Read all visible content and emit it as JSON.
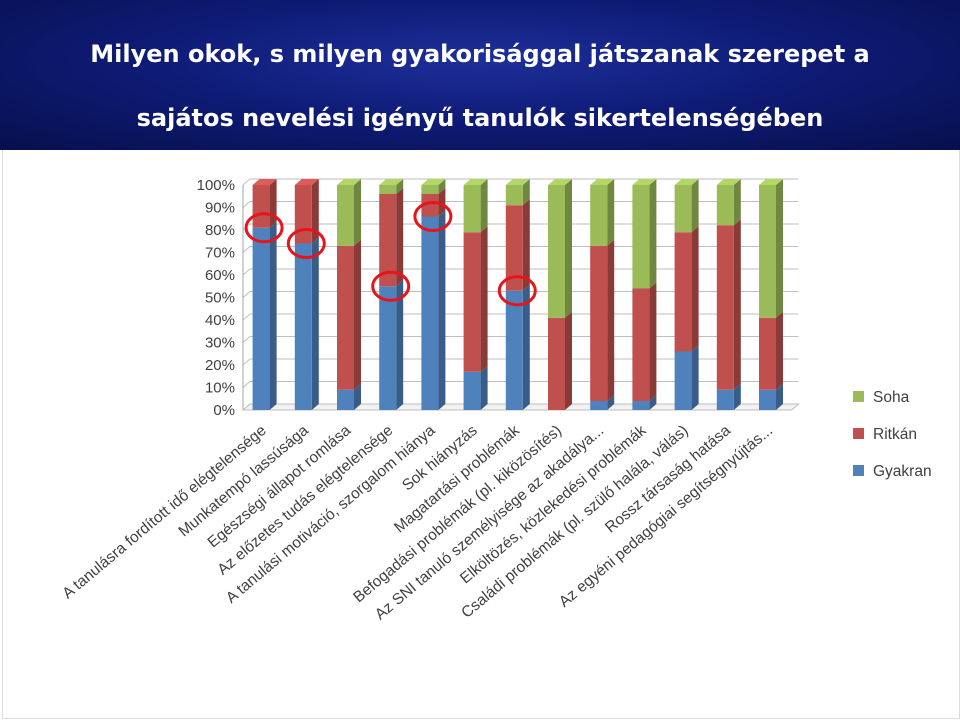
{
  "header": {
    "title_line1": "Milyen okok, s milyen gyakorisággal játszanak szerepet a",
    "title_line2": "sajátos nevelési igényű tanulók sikertelenségében"
  },
  "chart_data": {
    "type": "bar",
    "stacked": true,
    "percent": true,
    "categories": [
      "A tanulásra fordított idő elégtelensége",
      "Munkatempó lassúsága",
      "Egészségi állapot romlása",
      "Az előzetes tudás elégtelensége",
      "A tanulási motiváció, szorgalom hiánya",
      "Sok hiányzás",
      "Magatartási problémák",
      "Befogadási problémák (pl. kiközösítés)",
      "Az SNI tanuló személyisége az akadálya...",
      "Elköltözés, közlekedési problémák",
      "Családi problémák (pl. szülő halála, válás)",
      "Rossz társaság hatása",
      "Az egyéni pedagógiai segítségnyújtás..."
    ],
    "series": [
      {
        "name": "Gyakran",
        "color": "#4f81bd",
        "values": [
          81,
          74,
          9,
          55,
          86,
          17,
          53,
          0,
          4,
          4,
          26,
          9,
          9
        ]
      },
      {
        "name": "Ritkán",
        "color": "#c0504d",
        "values": [
          19,
          26,
          64,
          41,
          10,
          62,
          38,
          41,
          69,
          50,
          53,
          73,
          32
        ]
      },
      {
        "name": "Soha",
        "color": "#9bbb59",
        "values": [
          0,
          0,
          27,
          4,
          4,
          21,
          9,
          59,
          27,
          46,
          21,
          18,
          59
        ]
      }
    ],
    "ylim": [
      0,
      100
    ],
    "yticks": [
      "0%",
      "10%",
      "20%",
      "30%",
      "40%",
      "50%",
      "60%",
      "70%",
      "80%",
      "90%",
      "100%"
    ],
    "legend_position": "right",
    "highlight_circles": [
      {
        "category_index": 0,
        "value": 81
      },
      {
        "category_index": 1,
        "value": 74
      },
      {
        "category_index": 3,
        "value": 55
      },
      {
        "category_index": 4,
        "value": 86
      },
      {
        "category_index": 6,
        "value": 53
      }
    ],
    "highlight_color": "#e8141c"
  }
}
